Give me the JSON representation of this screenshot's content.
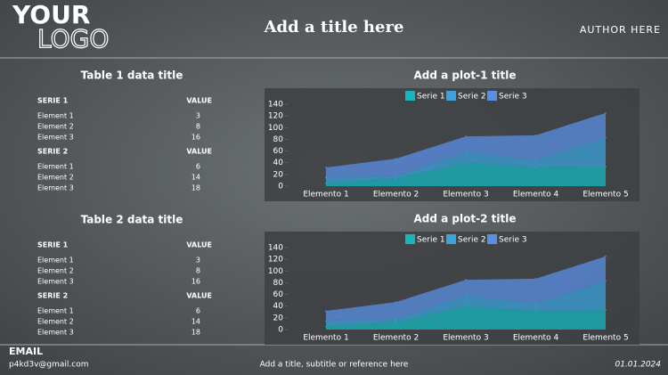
{
  "header": {
    "logo_top": "YOUR",
    "logo_bottom": "LOGO",
    "title": "Add a title here",
    "author": "AUTHOR HERE"
  },
  "tables": [
    {
      "title": "Table 1  data title",
      "groups": [
        {
          "header": [
            "SERIE 1",
            "VALUE"
          ],
          "rows": [
            [
              "Element 1",
              3
            ],
            [
              "Element 2",
              8
            ],
            [
              "Element 3",
              16
            ]
          ]
        },
        {
          "header": [
            "SERIE 2",
            "VALUE"
          ],
          "rows": [
            [
              "Element 1",
              6
            ],
            [
              "Element 2",
              14
            ],
            [
              "Element 3",
              18
            ]
          ]
        }
      ]
    },
    {
      "title": "Table 2 data title",
      "groups": [
        {
          "header": [
            "SERIE 1",
            "VALUE"
          ],
          "rows": [
            [
              "Element 1",
              3
            ],
            [
              "Element 2",
              8
            ],
            [
              "Element 3",
              16
            ]
          ]
        },
        {
          "header": [
            "SERIE 2",
            "VALUE"
          ],
          "rows": [
            [
              "Element 1",
              6
            ],
            [
              "Element 2",
              14
            ],
            [
              "Element 3",
              18
            ]
          ]
        }
      ]
    }
  ],
  "chart_data": [
    {
      "type": "stacked_area",
      "title": "Add a plot-1 title",
      "categories": [
        "Elemento 1",
        "Elemento 2",
        "Elemento 3",
        "Elemento 4",
        "Elemento 5"
      ],
      "series": [
        {
          "name": "Serie 1",
          "color": "#16b5c0",
          "values": [
            5,
            13,
            40,
            32,
            33
          ]
        },
        {
          "name": "Serie 2",
          "color": "#3ba3dc",
          "values": [
            10,
            5,
            18,
            13,
            50
          ]
        },
        {
          "name": "Serie 3",
          "color": "#5a8fe6",
          "values": [
            17,
            29,
            27,
            42,
            42
          ]
        }
      ],
      "ylim": [
        0,
        140
      ],
      "yticks": [
        0,
        20,
        40,
        60,
        80,
        100,
        120,
        140
      ],
      "legend": "top"
    },
    {
      "type": "stacked_area",
      "title": "Add a plot-2 title",
      "categories": [
        "Elemento 1",
        "Elemento 2",
        "Elemento 3",
        "Elemento 4",
        "Elemento 5"
      ],
      "series": [
        {
          "name": "Serie 1",
          "color": "#16b5c0",
          "values": [
            5,
            13,
            40,
            32,
            33
          ]
        },
        {
          "name": "Serie 2",
          "color": "#3ba3dc",
          "values": [
            10,
            5,
            18,
            13,
            50
          ]
        },
        {
          "name": "Serie 3",
          "color": "#5a8fe6",
          "values": [
            17,
            29,
            27,
            42,
            42
          ]
        }
      ],
      "ylim": [
        0,
        140
      ],
      "yticks": [
        0,
        20,
        40,
        60,
        80,
        100,
        120,
        140
      ],
      "legend": "top"
    }
  ],
  "footer": {
    "email_label": "EMAIL",
    "email": "p4kd3v@gmail.com",
    "reference": "Add a title, subtitle or reference here",
    "date": "01.01.2024"
  }
}
